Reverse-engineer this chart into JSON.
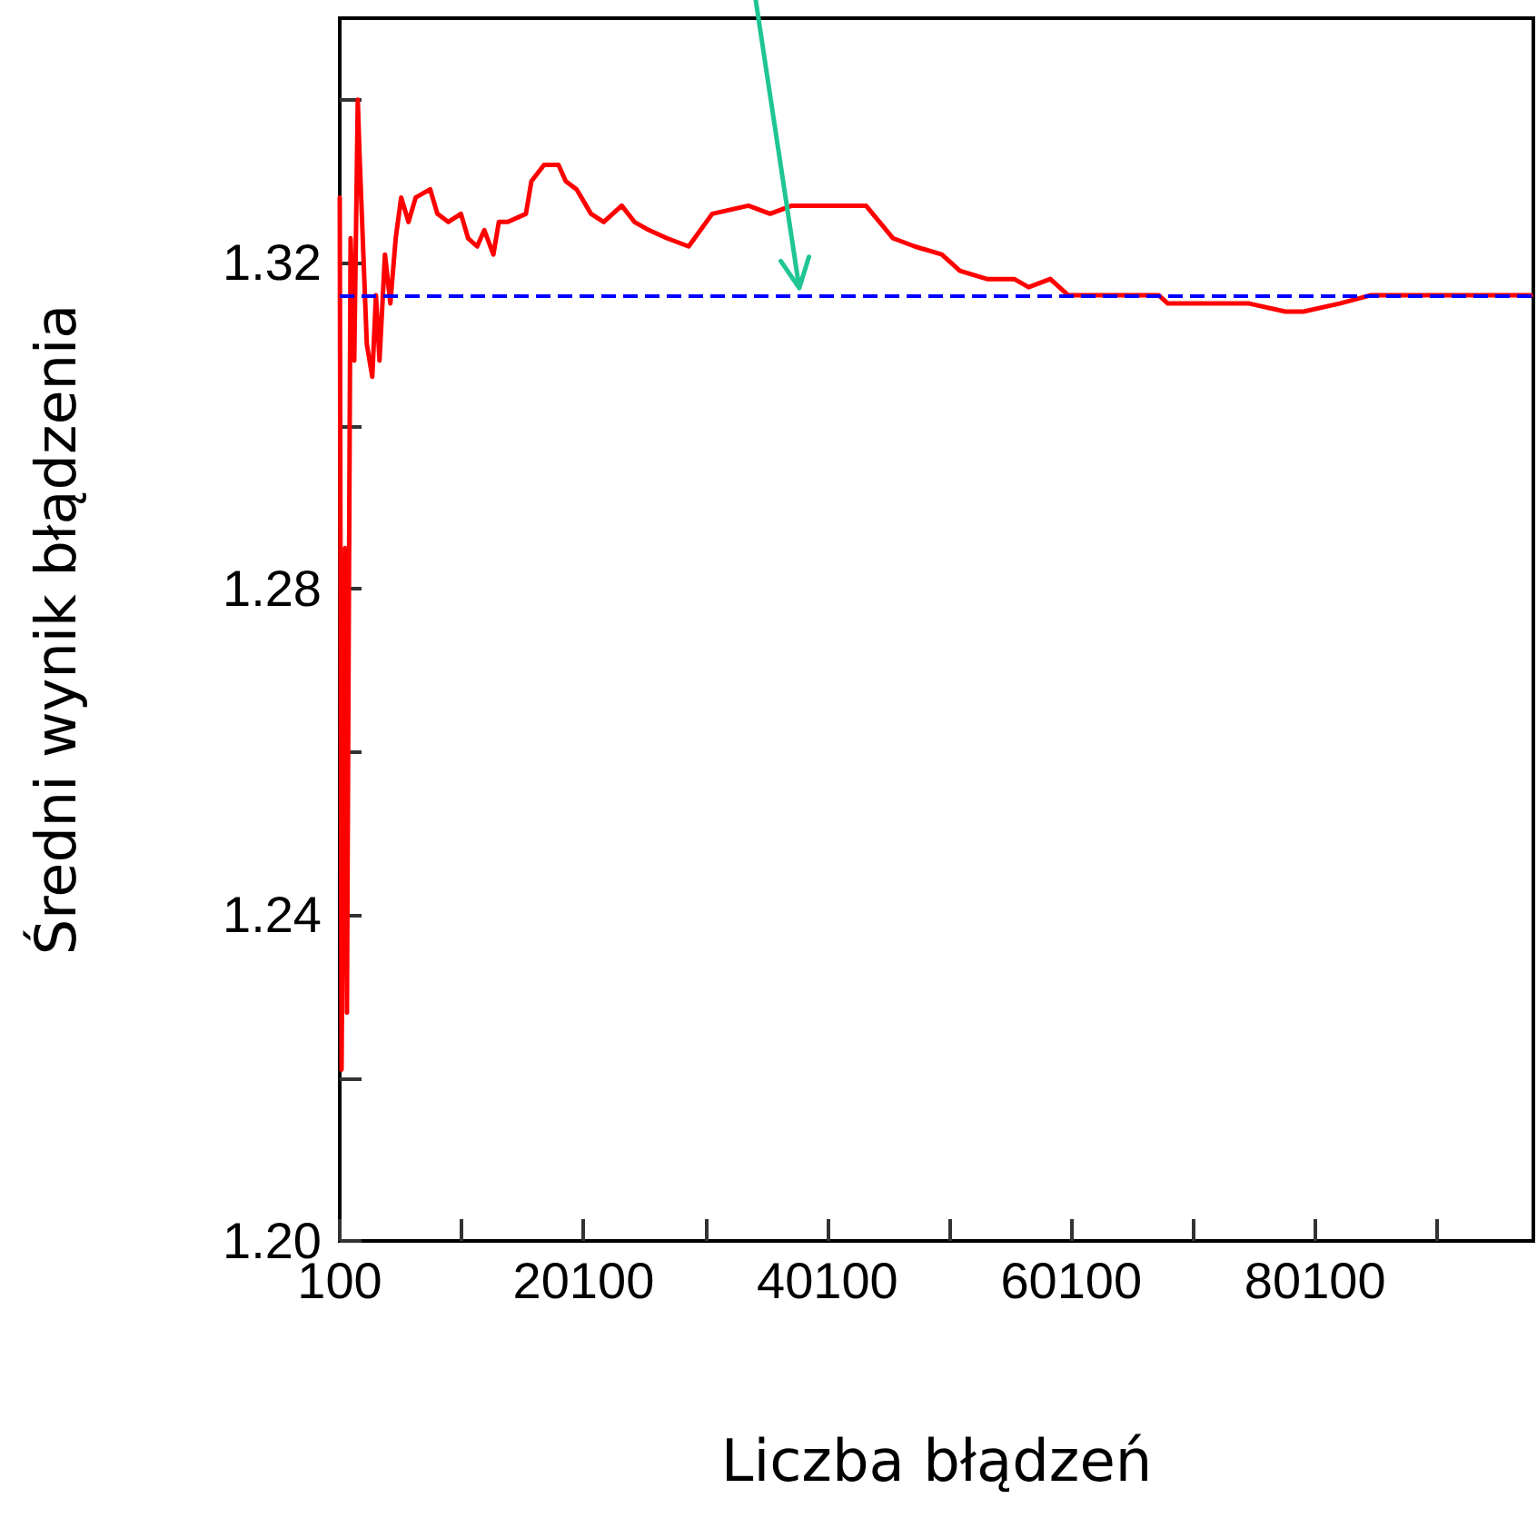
{
  "chart_data": {
    "type": "line",
    "xlabel": "Liczba błądzeń",
    "ylabel": "Średni wynik błądzenia",
    "x": [
      100,
      250,
      540,
      690,
      990,
      1290,
      1580,
      1730,
      2320,
      2770,
      3070,
      3360,
      3810,
      4250,
      4690,
      5140,
      5740,
      6330,
      7520,
      8110,
      9000,
      10040,
      10630,
      11370,
      11960,
      12700,
      13150,
      13890,
      15370,
      15820,
      16860,
      18040,
      18640,
      19530,
      20710,
      21750,
      23230,
      24270,
      25460,
      26940,
      28720,
      30650,
      33620,
      35400,
      37180,
      39100,
      43260,
      45480,
      47260,
      49480,
      50970,
      53190,
      55420,
      56600,
      58380,
      59860,
      62090,
      65050,
      67280,
      68020,
      70240,
      74690,
      77660,
      79140,
      82110,
      84630,
      87300,
      89520,
      97800
    ],
    "series": [
      {
        "color": "#ff0000",
        "values": [
          1.328,
          1.221,
          1.285,
          1.228,
          1.323,
          1.308,
          1.34,
          1.333,
          1.31,
          1.306,
          1.316,
          1.308,
          1.321,
          1.315,
          1.323,
          1.328,
          1.325,
          1.328,
          1.329,
          1.326,
          1.325,
          1.326,
          1.323,
          1.322,
          1.324,
          1.321,
          1.325,
          1.325,
          1.326,
          1.33,
          1.332,
          1.332,
          1.33,
          1.329,
          1.326,
          1.325,
          1.327,
          1.325,
          1.324,
          1.323,
          1.322,
          1.326,
          1.327,
          1.326,
          1.327,
          1.327,
          1.327,
          1.323,
          1.322,
          1.321,
          1.319,
          1.318,
          1.318,
          1.317,
          1.318,
          1.316,
          1.316,
          1.316,
          1.316,
          1.315,
          1.315,
          1.315,
          1.314,
          1.314,
          1.315,
          1.316,
          1.316,
          1.316,
          1.316
        ]
      }
    ],
    "xlim": [
      100,
      98000
    ],
    "xticks": [
      100,
      {
        "value": 10100,
        "label": null
      },
      20100,
      {
        "value": 30100,
        "label": null
      },
      40100,
      {
        "value": 50100,
        "label": null
      },
      60100,
      {
        "value": 70100,
        "label": null
      },
      80100,
      {
        "value": 90100,
        "label": null
      }
    ],
    "ylim": [
      1.2,
      1.35
    ],
    "yticks": [
      {
        "value": 1.2,
        "label": "1.20"
      },
      {
        "value": 1.22,
        "label": null
      },
      1.24,
      {
        "value": 1.26,
        "label": null
      },
      1.28,
      {
        "value": 1.3,
        "label": null
      },
      1.32,
      {
        "value": 1.34,
        "label": null
      }
    ],
    "ref_lines": [
      {
        "axis": "y",
        "value": 1.316,
        "color": "#0000ff",
        "line_style": "dashed"
      }
    ],
    "grid": false,
    "marker": "none",
    "line_style": "solid"
  }
}
